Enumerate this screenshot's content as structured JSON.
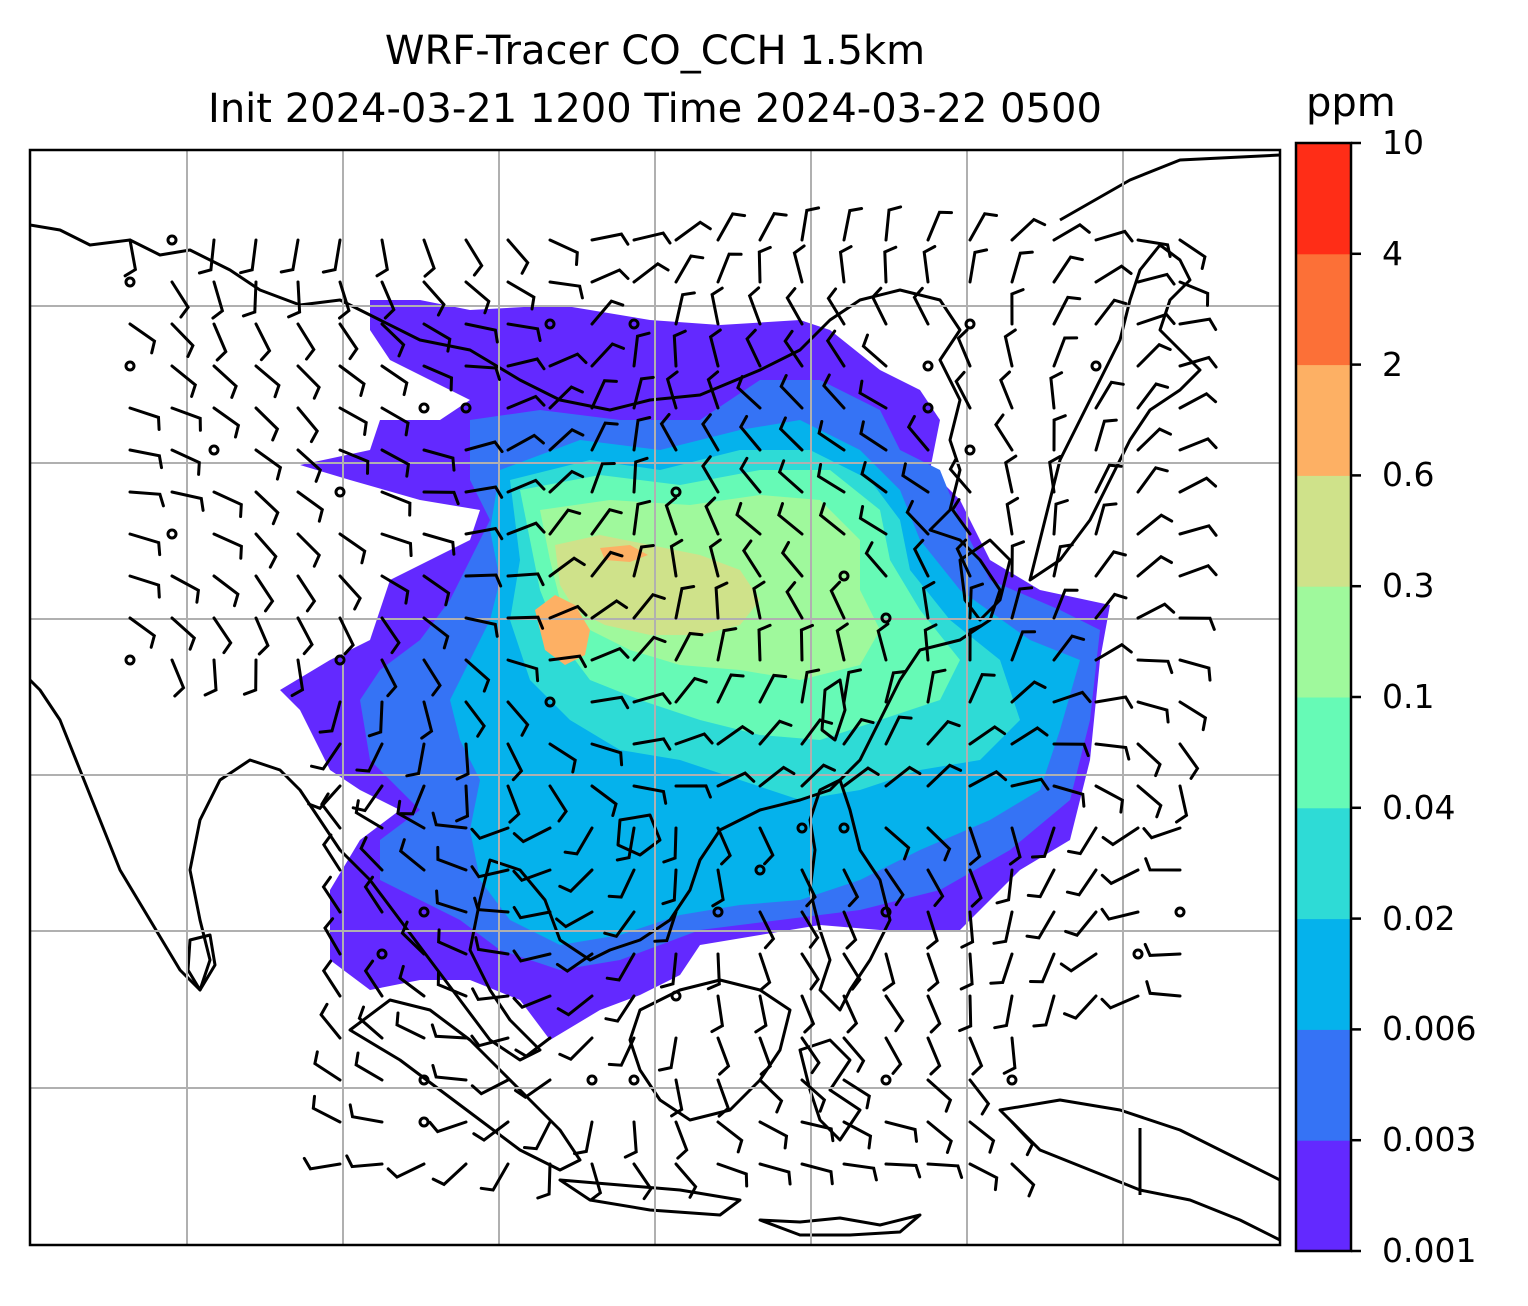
{
  "title": {
    "line1": "WRF-Tracer CO_CCH 1.5km",
    "line2": "Init 2024-03-21 1200 Time 2024-03-22 0500"
  },
  "colorbar": {
    "unit": "ppm",
    "levels": [
      "0.001",
      "0.003",
      "0.006",
      "0.02",
      "0.04",
      "0.1",
      "0.3",
      "0.6",
      "2",
      "4",
      "10"
    ],
    "colors": [
      "#6329ff",
      "#3573f5",
      "#05b2ec",
      "#2edbd6",
      "#66fab6",
      "#9ff99c",
      "#cfe28a",
      "#fdb064",
      "#fc7037",
      "#ff2d17"
    ]
  },
  "map": {
    "gridlines": true,
    "wind_barbs": true,
    "coastlines": true
  }
}
